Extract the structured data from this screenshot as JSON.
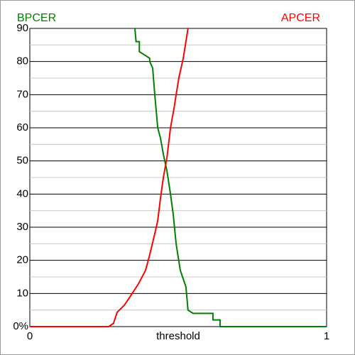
{
  "chart_data": {
    "type": "line",
    "x_label": "threshold",
    "xlim": [
      0,
      1
    ],
    "xticks": [
      0,
      1
    ],
    "ylim": [
      0,
      90
    ],
    "yticks": [
      {
        "value": 0,
        "label": "0%"
      },
      10,
      20,
      30,
      40,
      50,
      60,
      70,
      80,
      90
    ],
    "yminor": [
      5,
      15,
      25,
      35,
      45,
      55,
      65,
      75,
      85
    ],
    "grid": true,
    "series": [
      {
        "name": "BPCER",
        "color": "#008000",
        "legend": "left",
        "x": [
          0.354,
          0.358,
          0.369,
          0.369,
          0.404,
          0.404,
          0.414,
          0.421,
          0.431,
          0.44,
          0.45,
          0.462,
          0.474,
          0.483,
          0.493,
          0.507,
          0.526,
          0.533,
          0.55,
          0.617,
          0.617,
          0.641,
          0.641,
          1
        ],
        "values": [
          90,
          86,
          86,
          83,
          81,
          80,
          78,
          70,
          60,
          57,
          52,
          47,
          40,
          34,
          25,
          17,
          12,
          5,
          4,
          4,
          2,
          2,
          0,
          0
        ]
      },
      {
        "name": "APCER",
        "color": "#ff0000",
        "legend": "right",
        "x": [
          0,
          0.266,
          0.282,
          0.294,
          0.318,
          0.342,
          0.366,
          0.39,
          0.402,
          0.421,
          0.431,
          0.44,
          0.45,
          0.462,
          0.474,
          0.486,
          0.502,
          0.517,
          0.533
        ],
        "values": [
          0,
          0,
          1,
          4.3,
          6.4,
          9.6,
          12.9,
          17,
          21,
          28,
          32,
          38.6,
          45,
          51,
          60,
          66,
          75,
          81,
          90
        ]
      }
    ]
  }
}
